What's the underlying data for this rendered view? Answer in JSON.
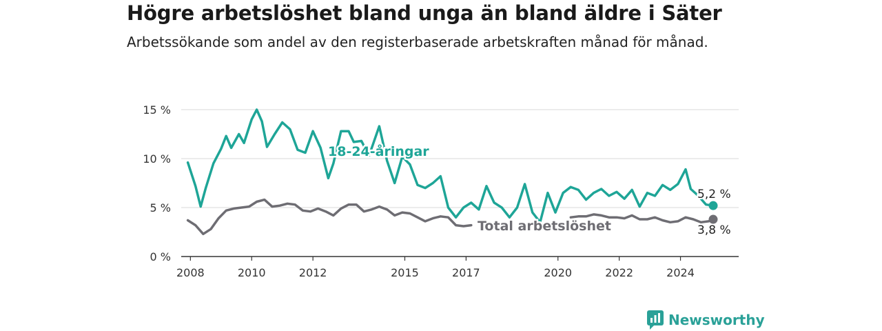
{
  "header": {
    "title": "Högre arbetslöshet bland unga än bland äldre i Säter",
    "subtitle": "Arbetssökande som andel av den registerbaserade arbetskraften månad för månad."
  },
  "brand": {
    "name": "Newsworthy",
    "icon": "bar-chart-speech-icon",
    "color": "#2aa198"
  },
  "chart_data": {
    "type": "line",
    "title": "Högre arbetslöshet bland unga än bland äldre i Säter",
    "subtitle": "Arbetssökande som andel av den registerbaserade arbetskraften månad för månad.",
    "xlabel": "",
    "ylabel": "",
    "x_ticks": [
      "2008",
      "2010",
      "2012",
      "2015",
      "2017",
      "2020",
      "2022",
      "2024"
    ],
    "y_ticks": [
      "0 %",
      "5 %",
      "10 %",
      "15 %"
    ],
    "ylim": [
      0,
      15
    ],
    "xlim": [
      "2007-09",
      "2025-12"
    ],
    "grid": true,
    "series": [
      {
        "name": "18-24-åringar",
        "color": "#1ea597",
        "end_label": "5,2 %",
        "points": [
          [
            "2007-12",
            9.6
          ],
          [
            "2008-03",
            7.2
          ],
          [
            "2008-05",
            5.1
          ],
          [
            "2008-07",
            7.0
          ],
          [
            "2008-10",
            9.5
          ],
          [
            "2009-01",
            11.0
          ],
          [
            "2009-03",
            12.3
          ],
          [
            "2009-05",
            11.1
          ],
          [
            "2009-08",
            12.5
          ],
          [
            "2009-10",
            11.6
          ],
          [
            "2010-01",
            14.0
          ],
          [
            "2010-03",
            15.0
          ],
          [
            "2010-05",
            13.8
          ],
          [
            "2010-07",
            11.2
          ],
          [
            "2010-10",
            12.5
          ],
          [
            "2011-01",
            13.7
          ],
          [
            "2011-04",
            13.0
          ],
          [
            "2011-07",
            10.9
          ],
          [
            "2011-10",
            10.6
          ],
          [
            "2012-01",
            12.8
          ],
          [
            "2012-04",
            11.1
          ],
          [
            "2012-07",
            8.0
          ],
          [
            "2012-09",
            9.5
          ],
          [
            "2012-12",
            12.8
          ],
          [
            "2013-03",
            12.8
          ],
          [
            "2013-05",
            11.7
          ],
          [
            "2013-08",
            11.8
          ],
          [
            "2013-11",
            10.3
          ],
          [
            "2014-03",
            13.3
          ],
          [
            "2014-06",
            9.8
          ],
          [
            "2014-09",
            7.5
          ],
          [
            "2014-12",
            10.2
          ],
          [
            "2015-03",
            9.4
          ],
          [
            "2015-06",
            7.3
          ],
          [
            "2015-09",
            7.0
          ],
          [
            "2015-12",
            7.5
          ],
          [
            "2016-03",
            8.2
          ],
          [
            "2016-06",
            5.0
          ],
          [
            "2016-09",
            4.0
          ],
          [
            "2016-12",
            5.0
          ],
          [
            "2017-03",
            5.5
          ],
          [
            "2017-06",
            4.8
          ],
          [
            "2017-09",
            7.2
          ],
          [
            "2017-12",
            5.5
          ],
          [
            "2018-03",
            5.0
          ],
          [
            "2018-06",
            4.0
          ],
          [
            "2018-09",
            5.0
          ],
          [
            "2018-12",
            7.4
          ],
          [
            "2019-03",
            4.5
          ],
          [
            "2019-06",
            3.5
          ],
          [
            "2019-09",
            6.5
          ],
          [
            "2019-12",
            4.5
          ],
          [
            "2020-03",
            6.5
          ],
          [
            "2020-06",
            7.1
          ],
          [
            "2020-09",
            6.8
          ],
          [
            "2020-12",
            5.8
          ],
          [
            "2021-03",
            6.5
          ],
          [
            "2021-06",
            6.9
          ],
          [
            "2021-09",
            6.2
          ],
          [
            "2021-12",
            6.6
          ],
          [
            "2022-03",
            5.9
          ],
          [
            "2022-06",
            6.8
          ],
          [
            "2022-09",
            5.1
          ],
          [
            "2022-12",
            6.5
          ],
          [
            "2023-03",
            6.2
          ],
          [
            "2023-06",
            7.3
          ],
          [
            "2023-09",
            6.8
          ],
          [
            "2023-12",
            7.4
          ],
          [
            "2024-03",
            8.9
          ],
          [
            "2024-05",
            6.9
          ],
          [
            "2024-08",
            6.2
          ],
          [
            "2024-11",
            5.3
          ],
          [
            "2025-02",
            5.2
          ]
        ]
      },
      {
        "name": "Total arbetslöshet",
        "color": "#6e6d73",
        "end_label": "3,8 %",
        "points": [
          [
            "2007-12",
            3.7
          ],
          [
            "2008-03",
            3.2
          ],
          [
            "2008-06",
            2.3
          ],
          [
            "2008-09",
            2.8
          ],
          [
            "2008-12",
            3.9
          ],
          [
            "2009-03",
            4.7
          ],
          [
            "2009-06",
            4.9
          ],
          [
            "2009-09",
            5.0
          ],
          [
            "2009-12",
            5.1
          ],
          [
            "2010-03",
            5.6
          ],
          [
            "2010-06",
            5.8
          ],
          [
            "2010-09",
            5.1
          ],
          [
            "2010-12",
            5.2
          ],
          [
            "2011-03",
            5.4
          ],
          [
            "2011-06",
            5.3
          ],
          [
            "2011-09",
            4.7
          ],
          [
            "2011-12",
            4.6
          ],
          [
            "2012-03",
            4.9
          ],
          [
            "2012-06",
            4.6
          ],
          [
            "2012-09",
            4.2
          ],
          [
            "2012-12",
            4.9
          ],
          [
            "2013-03",
            5.3
          ],
          [
            "2013-06",
            5.3
          ],
          [
            "2013-09",
            4.6
          ],
          [
            "2013-12",
            4.8
          ],
          [
            "2014-03",
            5.1
          ],
          [
            "2014-06",
            4.8
          ],
          [
            "2014-09",
            4.2
          ],
          [
            "2014-12",
            4.5
          ],
          [
            "2015-03",
            4.4
          ],
          [
            "2015-06",
            4.0
          ],
          [
            "2015-09",
            3.6
          ],
          [
            "2015-12",
            3.9
          ],
          [
            "2016-03",
            4.1
          ],
          [
            "2016-06",
            4.0
          ],
          [
            "2016-09",
            3.2
          ],
          [
            "2016-12",
            3.1
          ],
          [
            "2017-03",
            3.2
          ]
        ],
        "points_tail": [
          [
            "2020-06",
            4.0
          ],
          [
            "2020-09",
            4.1
          ],
          [
            "2020-12",
            4.1
          ],
          [
            "2021-03",
            4.3
          ],
          [
            "2021-06",
            4.2
          ],
          [
            "2021-09",
            4.0
          ],
          [
            "2021-12",
            4.0
          ],
          [
            "2022-03",
            3.9
          ],
          [
            "2022-06",
            4.2
          ],
          [
            "2022-09",
            3.8
          ],
          [
            "2022-12",
            3.8
          ],
          [
            "2023-03",
            4.0
          ],
          [
            "2023-06",
            3.7
          ],
          [
            "2023-09",
            3.5
          ],
          [
            "2023-12",
            3.6
          ],
          [
            "2024-03",
            4.0
          ],
          [
            "2024-06",
            3.8
          ],
          [
            "2024-09",
            3.5
          ],
          [
            "2024-12",
            3.6
          ],
          [
            "2025-02",
            3.8
          ]
        ]
      }
    ]
  }
}
